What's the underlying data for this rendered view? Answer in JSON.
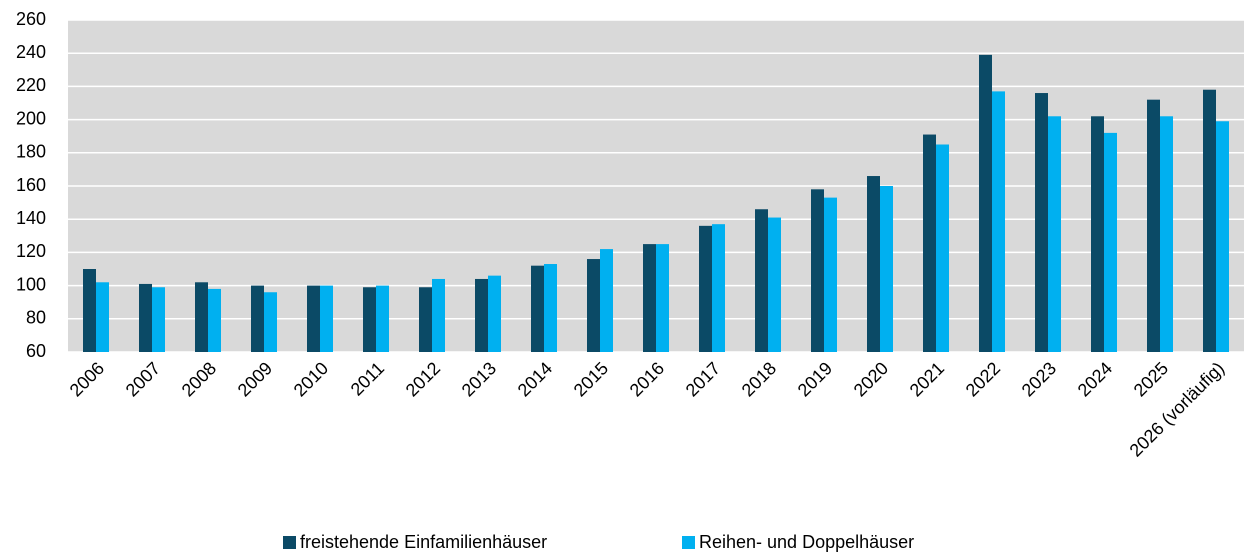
{
  "chart_data": {
    "type": "bar",
    "categories": [
      "2006",
      "2007",
      "2008",
      "2009",
      "2010",
      "2011",
      "2012",
      "2013",
      "2014",
      "2015",
      "2016",
      "2017",
      "2018",
      "2019",
      "2020",
      "2021",
      "2022",
      "2023",
      "2024",
      "2025",
      "2026 (vorläufig)"
    ],
    "series": [
      {
        "name": "freistehende Einfamilienhäuser",
        "color": "#0b4a66",
        "values": [
          110,
          101,
          102,
          100,
          100,
          99,
          99,
          104,
          112,
          116,
          125,
          136,
          146,
          158,
          166,
          191,
          239,
          216,
          202,
          212,
          218
        ]
      },
      {
        "name": "Reihen- und Doppelhäuser",
        "color": "#00b0f0",
        "values": [
          102,
          99,
          98,
          96,
          100,
          100,
          104,
          106,
          113,
          122,
          125,
          137,
          141,
          153,
          160,
          185,
          217,
          202,
          192,
          202,
          199
        ]
      }
    ],
    "ylim": [
      60,
      260
    ],
    "yticks": [
      60,
      80,
      100,
      120,
      140,
      160,
      180,
      200,
      220,
      240,
      260
    ],
    "grid": true
  }
}
